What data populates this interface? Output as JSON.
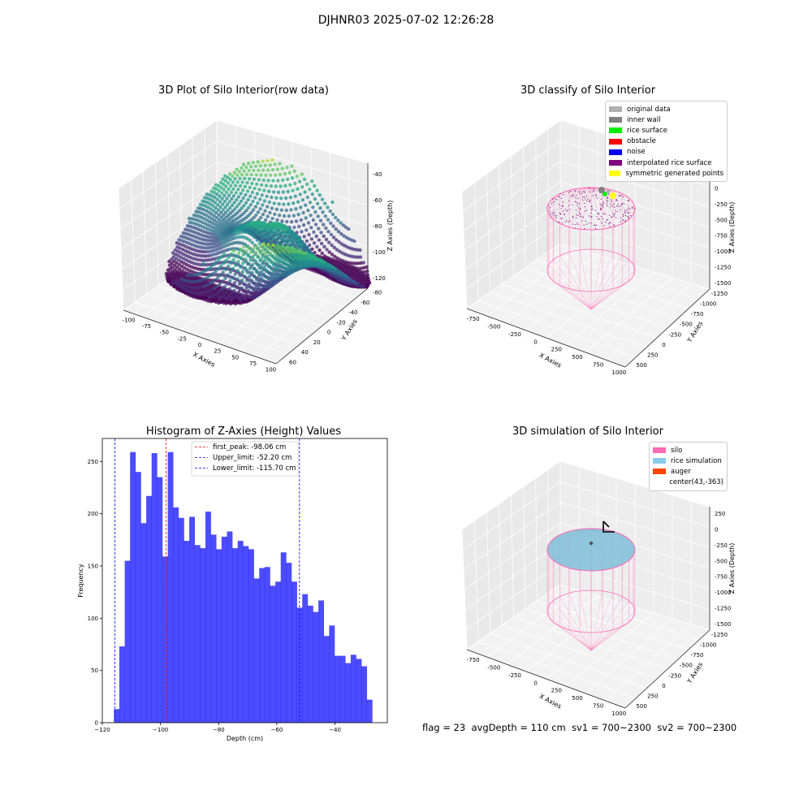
{
  "suptitle": "DJHNR03 2025-07-02 12:26:28",
  "panels": {
    "raw": {
      "title": "3D Plot of Silo Interior(row data)",
      "xlabel": "X Axies",
      "ylabel": "Y Axies",
      "zlabel": "Z Axies (Depth)",
      "xticks": [
        "-100",
        "-75",
        "-50",
        "-25",
        "0",
        "25",
        "50",
        "75",
        "100"
      ],
      "yticks": [
        "-80",
        "-60",
        "-40",
        "-20",
        "0",
        "20",
        "40",
        "60"
      ],
      "zticks": [
        "-40",
        "-60",
        "-80",
        "-100",
        "-120"
      ]
    },
    "classify": {
      "title": "3D classify of Silo Interior",
      "xlabel": "X Axies",
      "ylabel": "Y Axies",
      "zlabel": "Z Axies (Depth)",
      "xticks": [
        "-750",
        "-500",
        "-250",
        "0",
        "250",
        "500",
        "750",
        "1000"
      ],
      "yticks": [
        "-1250",
        "-1000",
        "-750",
        "-500",
        "-250",
        "0",
        "250",
        "500"
      ],
      "zticks": [
        "250",
        "0",
        "-250",
        "-500",
        "-750",
        "-1000",
        "-1250",
        "-1500"
      ],
      "legend": [
        {
          "label": "original data",
          "color": "#b0b0b0"
        },
        {
          "label": "inner wall",
          "color": "#808080"
        },
        {
          "label": "rice surface",
          "color": "#00ee00"
        },
        {
          "label": "obstacle",
          "color": "#ff0000"
        },
        {
          "label": "noise",
          "color": "#0000ee"
        },
        {
          "label": "interpolated rice surface",
          "color": "#800080"
        },
        {
          "label": "symmetric generated points",
          "color": "#ffff00"
        }
      ]
    },
    "simulation": {
      "title": "3D simulation of Silo Interior",
      "xlabel": "X Axies",
      "ylabel": "Y Axies",
      "zlabel": "Z Axies (Depth)",
      "xticks": [
        "-750",
        "-500",
        "-250",
        "0",
        "250",
        "500",
        "750",
        "1000"
      ],
      "yticks": [
        "-1250",
        "-1000",
        "-750",
        "-500",
        "-250",
        "0",
        "250",
        "500"
      ],
      "zticks": [
        "250",
        "0",
        "-250",
        "-500",
        "-750",
        "-1000",
        "-1250",
        "-1500"
      ],
      "legend": [
        {
          "label": "silo",
          "color": "#ff69b4"
        },
        {
          "label": "rice simulation",
          "color": "#87ceeb"
        },
        {
          "label": "auger",
          "color": "#ff4500"
        },
        {
          "label": "center(43,-363)",
          "color": ""
        }
      ]
    }
  },
  "chart_data": {
    "type": "bar",
    "title": "Histogram of Z-Axies (Height) Values",
    "xlabel": "Depth (cm)",
    "ylabel": "Frequency",
    "xlim": [
      -120,
      -22
    ],
    "ylim": [
      0,
      272
    ],
    "xticks": [
      -120,
      -100,
      -80,
      -60,
      -40
    ],
    "yticks": [
      0,
      50,
      100,
      150,
      200,
      250
    ],
    "bin_start": -116.0,
    "bin_width": 1.85,
    "counts": [
      13,
      73,
      155,
      259,
      240,
      191,
      217,
      258,
      235,
      159,
      259,
      206,
      196,
      174,
      197,
      170,
      167,
      202,
      180,
      166,
      178,
      183,
      167,
      174,
      169,
      166,
      138,
      148,
      149,
      131,
      135,
      163,
      153,
      135,
      110,
      123,
      112,
      106,
      117,
      83,
      93,
      64,
      64,
      57,
      65,
      61,
      54,
      22
    ],
    "lines": [
      {
        "label": "first_peak: -98.06 cm",
        "x": -98.06,
        "color": "#ff0000"
      },
      {
        "label": "Upper_limit: -52.20 cm",
        "x": -52.2,
        "color": "#0000ff"
      },
      {
        "label": "Lower_limit: -115.70 cm",
        "x": -115.7,
        "color": "#0000ff"
      }
    ]
  },
  "status": {
    "flag": "flag = 23",
    "avgDepth": "avgDepth = 110 cm",
    "sv1": "sv1 = 700~2300",
    "sv2": "sv2 = 700~2300"
  }
}
